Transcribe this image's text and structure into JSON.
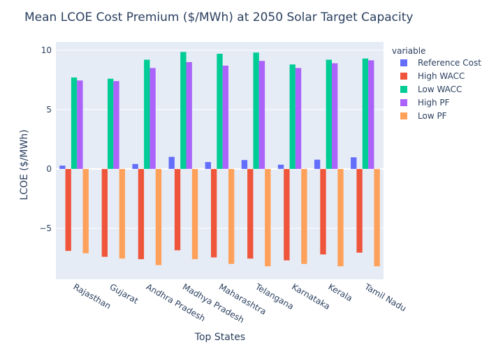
{
  "chart_data": {
    "type": "bar",
    "title": "Mean LCOE Cost Premium ($/MWh) at 2050 Solar Target Capacity",
    "xlabel": "Top States",
    "ylabel": "LCOE ($/MWh)",
    "ylim": [
      -9.3,
      10.7
    ],
    "yticks": [
      -5,
      0,
      5,
      10
    ],
    "ytick_labels": [
      "−5",
      "0",
      "5",
      "10"
    ],
    "grid": true,
    "legend": {
      "title": "variable",
      "placement": "right"
    },
    "categories": [
      "Rajasthan",
      "Gujarat",
      "Andhra Pradesh",
      "Madhya Pradesh",
      "Maharashtra",
      "Telangana",
      "Karnataka",
      "Kerala",
      "Tamil Nadu"
    ],
    "series": [
      {
        "name": "Reference Cost",
        "color": "#636efa",
        "values": [
          0.28,
          0.0,
          0.42,
          1.02,
          0.58,
          0.75,
          0.36,
          0.78,
          0.98
        ]
      },
      {
        "name": "High WACC",
        "color": "#ef553b",
        "values": [
          -6.9,
          -7.4,
          -7.6,
          -6.85,
          -7.45,
          -7.55,
          -7.7,
          -7.2,
          -7.05
        ]
      },
      {
        "name": "Low WACC",
        "color": "#00cc96",
        "values": [
          7.7,
          7.6,
          9.2,
          9.85,
          9.7,
          9.8,
          8.8,
          9.2,
          9.3
        ]
      },
      {
        "name": "High PF",
        "color": "#ab63fa",
        "values": [
          7.45,
          7.4,
          8.5,
          9.0,
          8.7,
          9.1,
          8.5,
          8.9,
          9.15
        ]
      },
      {
        "name": "Low PF",
        "color": "#ffa15a",
        "values": [
          -7.1,
          -7.55,
          -8.1,
          -7.6,
          -8.0,
          -8.2,
          -8.0,
          -8.2,
          -8.2
        ]
      }
    ]
  }
}
